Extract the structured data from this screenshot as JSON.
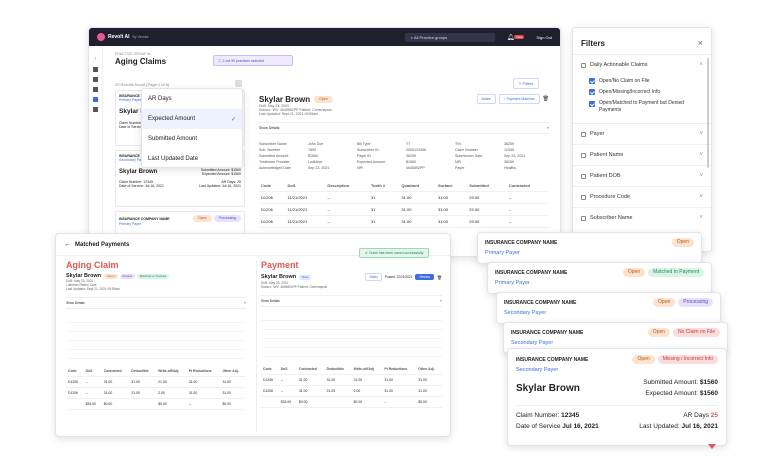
{
  "app": {
    "logo": "Revolt AI",
    "byline": "By Vendor",
    "search": "All Practice groups",
    "sign_out": "Sign Out",
    "badge": "New"
  },
  "aging": {
    "breadcrumb": "PRACTICE GROUP AI",
    "title": "Aging Claims",
    "info": "2 out 90 practices selected",
    "count": "20 Results found (Page 1 of 6)",
    "filters_btn": "Filters",
    "sort_options": [
      "AR Days",
      "Expected Amount",
      "Submitted Amount",
      "Last Updated Date"
    ],
    "claims": [
      {
        "company": "INSURANCE COMPANY NAME",
        "payer": "Primary Payer",
        "name": "Skylar B",
        "l1": "Claim Number",
        "l2": "Date of Service"
      },
      {
        "company": "INSURANCE COMPANY NAME",
        "payer": "Secondary Payer",
        "name": "Skylar Brown",
        "submitted": "Submitted Amount: $1560",
        "expected": "Expected Amount: $1560",
        "claim": "Claim Number: 12345",
        "ar": "AR Days: 25",
        "dos": "Date of Service: Jul 16, 2021",
        "updated": "Last Updated: Jul 16, 2021"
      },
      {
        "company": "INSURANCE COMPANY NAME",
        "payer": "Primary Payer",
        "status1": "Open",
        "status2": "Processing"
      }
    ]
  },
  "detail": {
    "name": "Skylar Brown",
    "status": "Open",
    "line1": "DoB: May 23, 2001",
    "line2": "Subscr.: WV: 4645892PP Patient: Comenapsis",
    "line3": "Last Updated: Sept 21, 2021 09:55am",
    "notes": "Notes",
    "payment": "Payment Matches",
    "show": "Show Details",
    "fields": [
      "Subscriber Name",
      "John Doe",
      "Bill Type",
      "TT",
      "TIN",
      "36259",
      "Sub. Number",
      "7890",
      "Subscriber ID",
      "0000123456",
      "Claim Number",
      "12345",
      "Submitted Amount",
      "$1560",
      "Payer ID",
      "36259",
      "Submission Date",
      "Sep 23, 2021",
      "Treatment Provider",
      "Lodkleve",
      "Expected Amount",
      "$1560",
      "NPI",
      "36259",
      "Acknowledged Date",
      "Sep 23, 2021",
      "NPI",
      "4645892PP",
      "Payer",
      "Healthc."
    ],
    "cols": [
      "Code",
      "DoS",
      "Description",
      "Tooth #",
      "Quadrant",
      "Surface",
      "Submitted",
      "Contracted"
    ],
    "rows": [
      [
        "D1206",
        "11/21/2021",
        "--",
        "31",
        "31.00",
        "31.00",
        "29.00",
        "--"
      ],
      [
        "D1206",
        "11/21/2021",
        "--",
        "31",
        "31.00",
        "31.00",
        "29.00",
        "--"
      ],
      [
        "D1206",
        "11/21/2021",
        "--",
        "31",
        "31.00",
        "31.00",
        "29.00",
        "--"
      ]
    ]
  },
  "filters": {
    "title": "Filters",
    "close": "×",
    "daily": "Daily Actionable Claims",
    "checks": [
      "Open/No Claim on File",
      "Open/Missing/Incorrect Info",
      "Open/Matched to Payment but Denied Payments"
    ],
    "sections": [
      "Payer",
      "Patient Name",
      "Patient DOB",
      "Procedure Code",
      "Subscriber Name"
    ]
  },
  "matched": {
    "back": "Matched Payments",
    "aging_title": "Aging Claim",
    "payment_title": "Payment",
    "toast": "Claim has been saved successfully",
    "a_name": "Skylar Brown",
    "a_tags": [
      "Open",
      "Posted",
      "Matched to Tracked"
    ],
    "a_l1": "DoB: May 23, 2001",
    "a_l2": "Lutheran Reebo Care",
    "a_l3": "Last Updated: Sept 21, 2021 09:55am",
    "p_name": "Skylar Brown",
    "p_tag": "New",
    "p_l1": "DoB: May 23, 2001",
    "p_l2": "Subscr.: WV: 4645892PP Patient: Comenapsis",
    "p_notes": "Notes",
    "p_posted": "Posted: 12/21/2021",
    "p_review": "Review",
    "show": "Show Details",
    "a_cols": [
      "Code",
      "DoS",
      "Contracted",
      "Deductible",
      "Write-off/Adj",
      "Pt Reductions",
      "Other Adj."
    ],
    "a_rows": [
      [
        "D1206",
        "--",
        "31.00",
        "31.00",
        "21.00",
        "31.00",
        "31.00"
      ],
      [
        "D1206",
        "--",
        "31.00",
        "21.00",
        "2.00",
        "31.00",
        "31.00"
      ],
      [
        "",
        "$33.00",
        "$0.00",
        "",
        "$0.00",
        "--",
        "$0.00"
      ]
    ],
    "p_cols": [
      "Code",
      "DoS",
      "Contracted",
      "Deductible",
      "Write-off/Adj",
      "Pt Reductions",
      "Other Adj."
    ],
    "p_rows": [
      [
        "D1206",
        "--",
        "31.00",
        "31.00",
        "21.00",
        "31.00",
        "31.00"
      ],
      [
        "D1206",
        "--",
        "31.00",
        "21.00",
        "2.00",
        "31.00",
        "31.00"
      ],
      [
        "",
        "$33.00",
        "$0.00",
        "",
        "$0.00",
        "--",
        "$0.00"
      ]
    ]
  },
  "stack": [
    {
      "company": "INSURANCE COMPANY NAME",
      "payer": "Primary Payer",
      "tags": [
        "Open"
      ],
      "tagc": [
        "p-open"
      ]
    },
    {
      "company": "INSURANCE COMPANY NAME",
      "payer": "Primary Payer",
      "tags": [
        "Open",
        "Matched to Payment"
      ],
      "tagc": [
        "p-open",
        "p-green"
      ]
    },
    {
      "company": "INSURANCE COMPANY NAME",
      "payer": "Secondary Payer",
      "tags": [
        "Open",
        "Processing"
      ],
      "tagc": [
        "p-open",
        "p-purple"
      ]
    },
    {
      "company": "INSURANCE COMPANY NAME",
      "payer": "Secondary Payer",
      "tags": [
        "Open",
        "No Claim on File"
      ],
      "tagc": [
        "p-open",
        "p-red"
      ]
    }
  ],
  "front": {
    "company": "INSURANCE COMPANY NAME",
    "payer": "Secondary Payer",
    "tags": [
      "Open",
      "Missing / Incorrect Info"
    ],
    "name": "Skylar Brown",
    "submitted_label": "Submitted Amount:",
    "submitted": "$1560",
    "expected_label": "Expected Amount:",
    "expected": "$1560",
    "claim_label": "Claim Number:",
    "claim": "12345",
    "ar_label": "AR Days",
    "ar": "25",
    "dos_label": "Date of Service",
    "dos": "Jul 16, 2021",
    "upd_label": "Last Updated:",
    "upd": "Jul 16, 2021"
  },
  "colors": {
    "accent": "#3b6de0",
    "aging": "#e05858",
    "payment": "#e05858",
    "dark": "#1f1f2e"
  }
}
